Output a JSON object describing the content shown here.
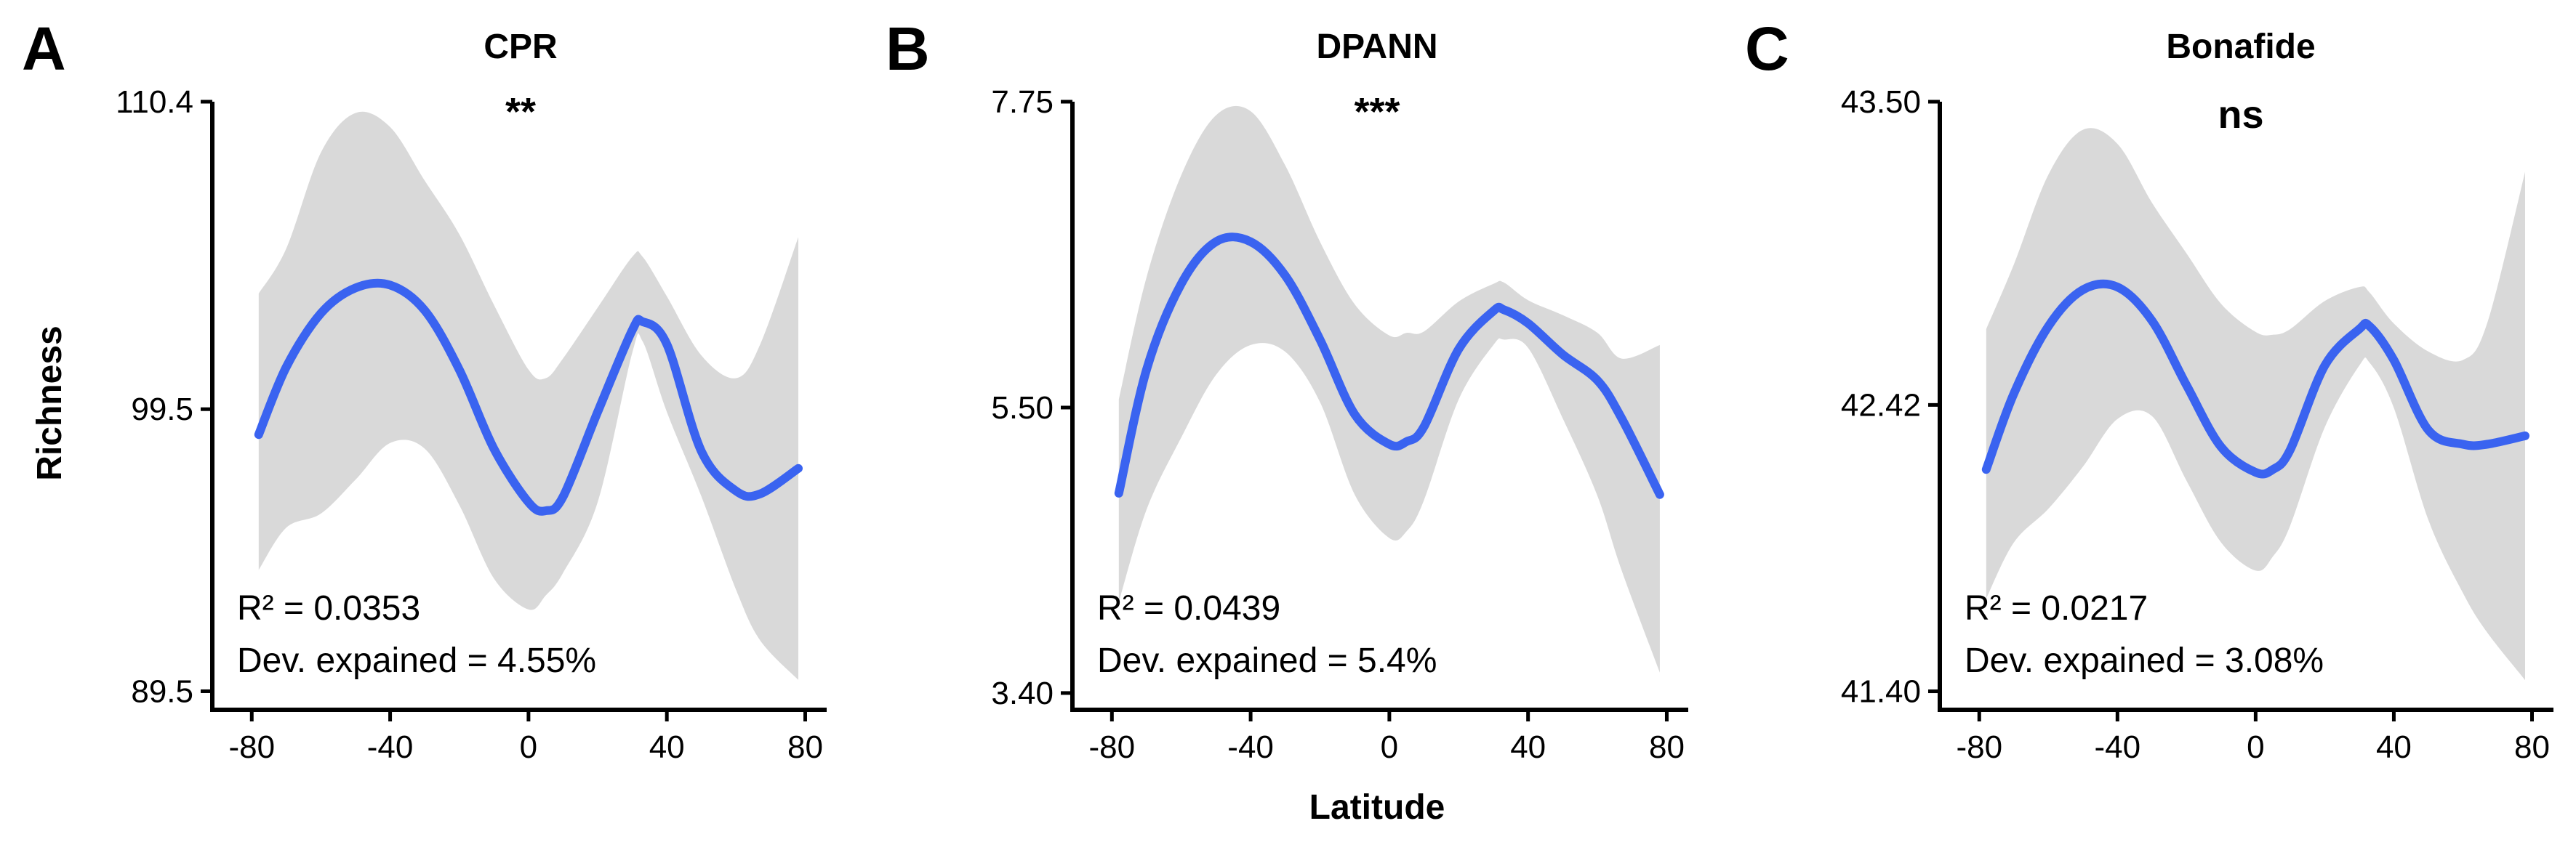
{
  "colors": {
    "line": "#3a63f0",
    "band": "#d9d9d9",
    "axis": "#000000"
  },
  "ylabel": "Richness",
  "xlabel": "Latitude",
  "chart_data": [
    {
      "type": "line",
      "letter": "A",
      "title": "CPR",
      "significance": "**",
      "stat_r2": "R² = 0.0353",
      "stat_dev": "Dev. expained = 4.55%",
      "xlim": [
        -83,
        82
      ],
      "xticks": [
        -80,
        -40,
        0,
        40,
        80
      ],
      "xtick_labels": [
        "-80",
        "-40",
        "0",
        "40",
        "80"
      ],
      "ylim": [
        89.1,
        110.4
      ],
      "yticks": [
        89.5,
        99.5,
        110.4
      ],
      "ytick_labels": [
        "89.5",
        "99.5",
        "110.4"
      ],
      "x": [
        -78,
        -70,
        -60,
        -50,
        -40,
        -30,
        -20,
        -10,
        0,
        5,
        10,
        20,
        30,
        33,
        40,
        50,
        60,
        67,
        78
      ],
      "y": [
        98.6,
        101.0,
        102.9,
        103.8,
        103.9,
        103.0,
        100.9,
        98.1,
        96.2,
        95.9,
        96.4,
        99.4,
        102.3,
        102.6,
        101.8,
        98.0,
        96.6,
        96.5,
        97.4
      ],
      "upper": [
        103.6,
        105.2,
        108.6,
        110.0,
        109.5,
        107.6,
        105.7,
        103.2,
        100.9,
        100.6,
        101.3,
        103.1,
        104.9,
        104.9,
        103.5,
        101.4,
        100.6,
        101.8,
        105.6
      ],
      "lower": [
        93.8,
        95.3,
        95.8,
        97.0,
        98.3,
        98.1,
        96.1,
        93.5,
        92.4,
        92.9,
        93.7,
        96.2,
        101.5,
        101.9,
        99.4,
        96.4,
        93.1,
        91.3,
        89.9
      ]
    },
    {
      "type": "line",
      "letter": "B",
      "title": "DPANN",
      "significance": "***",
      "stat_r2": "R² = 0.0439",
      "stat_dev": "Dev. expained = 5.4%",
      "xlim": [
        -83,
        82
      ],
      "xticks": [
        -80,
        -40,
        0,
        40,
        80
      ],
      "xtick_labels": [
        "-80",
        "-40",
        "0",
        "40",
        "80"
      ],
      "ylim": [
        3.33,
        7.75
      ],
      "yticks": [
        3.4,
        5.5,
        7.75
      ],
      "ytick_labels": [
        "3.40",
        "5.50",
        "7.75"
      ],
      "x": [
        -78,
        -70,
        -60,
        -50,
        -40,
        -30,
        -20,
        -10,
        0,
        5,
        10,
        20,
        30,
        33,
        40,
        50,
        60,
        67,
        78
      ],
      "y": [
        4.87,
        5.78,
        6.41,
        6.72,
        6.72,
        6.47,
        6.0,
        5.45,
        5.23,
        5.25,
        5.36,
        5.93,
        6.21,
        6.22,
        6.12,
        5.89,
        5.7,
        5.42,
        4.86
      ],
      "upper": [
        5.56,
        6.46,
        7.21,
        7.65,
        7.68,
        7.28,
        6.72,
        6.26,
        6.03,
        6.05,
        6.06,
        6.28,
        6.41,
        6.42,
        6.29,
        6.18,
        6.05,
        5.86,
        5.96
      ],
      "lower": [
        4.07,
        4.75,
        5.28,
        5.74,
        5.96,
        5.91,
        5.54,
        4.86,
        4.54,
        4.59,
        4.82,
        5.56,
        5.96,
        6.0,
        5.94,
        5.42,
        4.85,
        4.3,
        3.55
      ]
    },
    {
      "type": "line",
      "letter": "C",
      "title": "Bonafide",
      "significance": "ns",
      "stat_r2": "R² = 0.0217",
      "stat_dev": "Dev. expained = 3.08%",
      "xlim": [
        -83,
        82
      ],
      "xticks": [
        -80,
        -40,
        0,
        40,
        80
      ],
      "xtick_labels": [
        "-80",
        "-40",
        "0",
        "40",
        "80"
      ],
      "ylim": [
        41.36,
        43.5
      ],
      "yticks": [
        41.4,
        42.42,
        43.5
      ],
      "ytick_labels": [
        "41.40",
        "42.42",
        "43.50"
      ],
      "x": [
        -78,
        -70,
        -60,
        -50,
        -40,
        -30,
        -20,
        -10,
        0,
        5,
        10,
        20,
        30,
        33,
        40,
        50,
        60,
        67,
        78
      ],
      "y": [
        42.19,
        42.46,
        42.7,
        42.83,
        42.84,
        42.72,
        42.49,
        42.27,
        42.18,
        42.19,
        42.26,
        42.56,
        42.69,
        42.7,
        42.58,
        42.33,
        42.28,
        42.28,
        42.31
      ],
      "upper": [
        42.69,
        42.92,
        43.24,
        43.4,
        43.35,
        43.14,
        42.96,
        42.78,
        42.68,
        42.67,
        42.69,
        42.79,
        42.84,
        42.82,
        42.71,
        42.61,
        42.58,
        42.71,
        43.25
      ],
      "lower": [
        41.73,
        41.93,
        42.05,
        42.2,
        42.37,
        42.38,
        42.15,
        41.93,
        41.83,
        41.88,
        41.99,
        42.34,
        42.56,
        42.57,
        42.41,
        42.01,
        41.75,
        41.61,
        41.44
      ]
    }
  ]
}
